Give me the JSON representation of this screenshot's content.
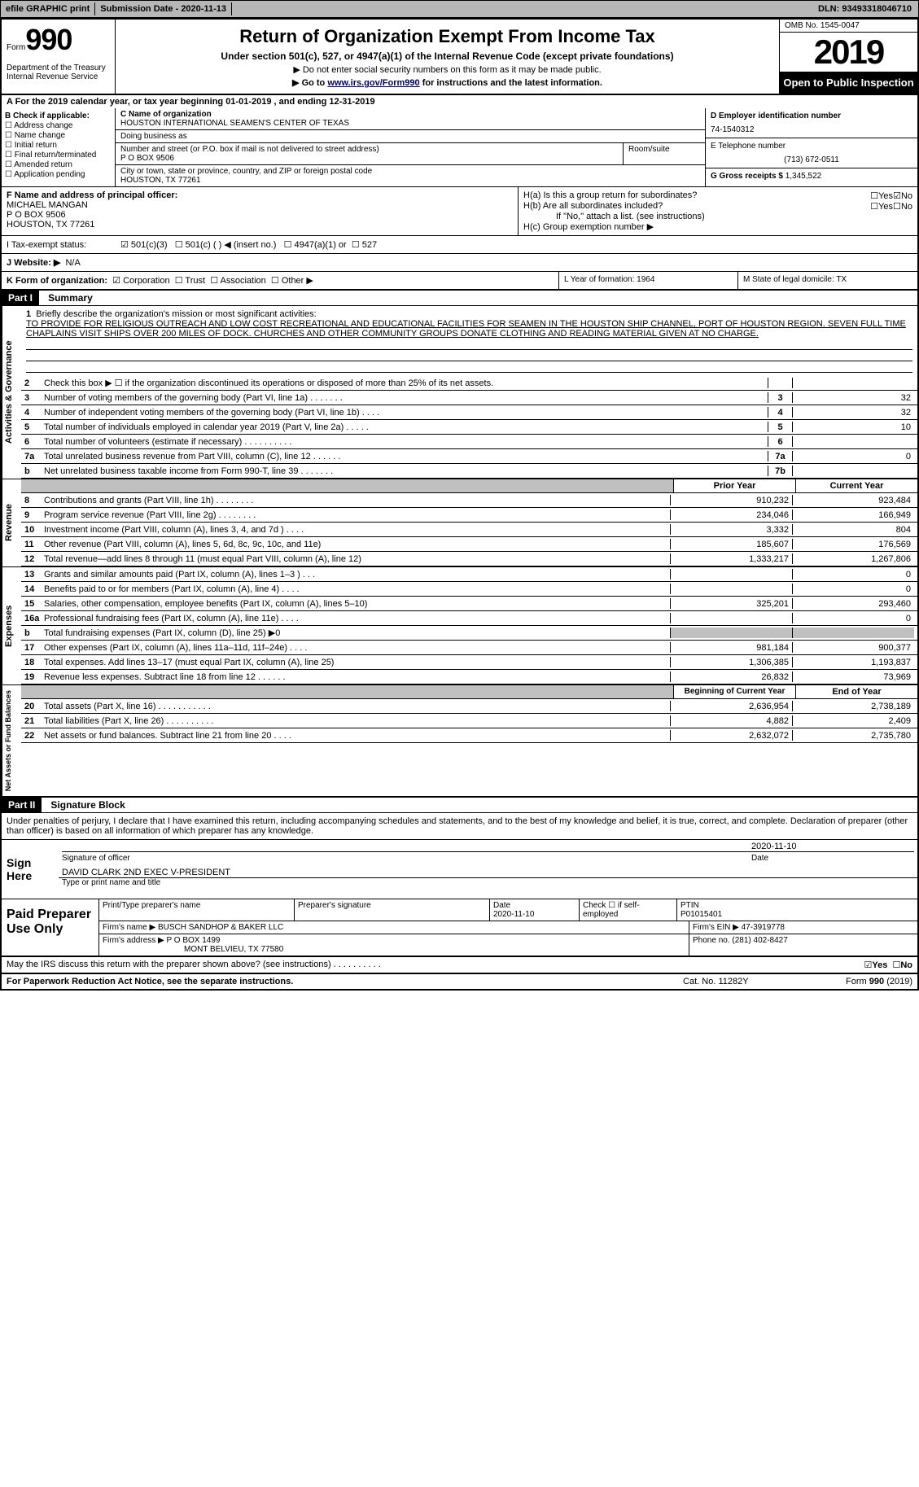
{
  "header": {
    "efile": "efile GRAPHIC print",
    "submission": "Submission Date - 2020-11-13",
    "dln": "DLN: 93493318046710"
  },
  "form": {
    "form_label": "Form",
    "form_no": "990",
    "dept": "Department of the Treasury\nInternal Revenue Service",
    "title": "Return of Organization Exempt From Income Tax",
    "subtitle": "Under section 501(c), 527, or 4947(a)(1) of the Internal Revenue Code (except private foundations)",
    "note1": "▶ Do not enter social security numbers on this form as it may be made public.",
    "note2_pre": "▶ Go to ",
    "note2_link": "www.irs.gov/Form990",
    "note2_post": " for instructions and the latest information.",
    "omb": "OMB No. 1545-0047",
    "year": "2019",
    "open": "Open to Public Inspection"
  },
  "period": "A For the 2019 calendar year, or tax year beginning 01-01-2019    , and ending 12-31-2019",
  "box_b": {
    "head": "B Check if applicable:",
    "items": [
      "Address change",
      "Name change",
      "Initial return",
      "Final return/terminated",
      "Amended return",
      "Application pending"
    ]
  },
  "box_c": {
    "label": "C Name of organization",
    "name": "HOUSTON INTERNATIONAL SEAMEN'S CENTER OF TEXAS",
    "dba_label": "Doing business as",
    "dba": "",
    "addr_label": "Number and street (or P.O. box if mail is not delivered to street address)",
    "addr": "P O BOX 9506",
    "room_label": "Room/suite",
    "city_label": "City or town, state or province, country, and ZIP or foreign postal code",
    "city": "HOUSTON, TX  77261"
  },
  "box_d": {
    "label": "D Employer identification number",
    "val": "74-1540312"
  },
  "box_e": {
    "label": "E Telephone number",
    "val": "(713) 672-0511"
  },
  "box_g": {
    "label": "G Gross receipts $",
    "val": "1,345,522"
  },
  "box_f": {
    "label": "F Name and address of principal officer:",
    "name": "MICHAEL MANGAN",
    "addr1": "P O BOX 9506",
    "addr2": "HOUSTON, TX  77261"
  },
  "box_h": {
    "ha": "H(a)  Is this a group return for subordinates?",
    "hb": "H(b)  Are all subordinates included?",
    "hb_note": "If \"No,\" attach a list. (see instructions)",
    "hc": "H(c)  Group exemption number ▶",
    "yes": "Yes",
    "no": "No"
  },
  "status": {
    "label": "I  Tax-exempt status:",
    "opts": [
      "501(c)(3)",
      "501(c) (  ) ◀ (insert no.)",
      "4947(a)(1) or",
      "527"
    ]
  },
  "website": {
    "label": "J  Website: ▶",
    "val": "N/A"
  },
  "box_k": {
    "label": "K Form of organization:",
    "opts": [
      "Corporation",
      "Trust",
      "Association",
      "Other ▶"
    ]
  },
  "box_l": "L Year of formation: 1964",
  "box_m": "M State of legal domicile: TX",
  "part1": {
    "header": "Part I",
    "title": "Summary"
  },
  "mission": {
    "num": "1",
    "label": "Briefly describe the organization's mission or most significant activities:",
    "text": "TO PROVIDE FOR RELIGIOUS OUTREACH AND LOW COST RECREATIONAL AND EDUCATIONAL FACILITIES FOR SEAMEN IN THE HOUSTON SHIP CHANNEL, PORT OF HOUSTON REGION. SEVEN FULL TIME CHAPLAINS VISIT SHIPS OVER 200 MILES OF DOCK. CHURCHES AND OTHER COMMUNITY GROUPS DONATE CLOTHING AND READING MATERIAL GIVEN AT NO CHARGE."
  },
  "lines_gov": [
    {
      "n": "2",
      "d": "Check this box ▶ ☐  if the organization discontinued its operations or disposed of more than 25% of its net assets.",
      "b": "",
      "v": ""
    },
    {
      "n": "3",
      "d": "Number of voting members of the governing body (Part VI, line 1a)   .    .    .    .    .    .    .",
      "b": "3",
      "v": "32"
    },
    {
      "n": "4",
      "d": "Number of independent voting members of the governing body (Part VI, line 1b)   .    .    .    .",
      "b": "4",
      "v": "32"
    },
    {
      "n": "5",
      "d": "Total number of individuals employed in calendar year 2019 (Part V, line 2a)   .    .    .    .    .",
      "b": "5",
      "v": "10"
    },
    {
      "n": "6",
      "d": "Total number of volunteers (estimate if necessary)   .    .    .    .    .    .    .    .    .    .",
      "b": "6",
      "v": ""
    },
    {
      "n": "7a",
      "d": "Total unrelated business revenue from Part VIII, column (C), line 12   .    .    .    .    .    .",
      "b": "7a",
      "v": "0"
    },
    {
      "n": "b",
      "d": "Net unrelated business taxable income from Form 990-T, line 39   .    .    .    .    .    .    .",
      "b": "7b",
      "v": ""
    }
  ],
  "year_hdr": {
    "prior": "Prior Year",
    "current": "Current Year"
  },
  "lines_rev": [
    {
      "n": "8",
      "d": "Contributions and grants (Part VIII, line 1h)   .    .    .    .    .    .    .    .",
      "p": "910,232",
      "c": "923,484"
    },
    {
      "n": "9",
      "d": "Program service revenue (Part VIII, line 2g)   .    .    .    .    .    .    .    .",
      "p": "234,046",
      "c": "166,949"
    },
    {
      "n": "10",
      "d": "Investment income (Part VIII, column (A), lines 3, 4, and 7d )   .    .    .    .",
      "p": "3,332",
      "c": "804"
    },
    {
      "n": "11",
      "d": "Other revenue (Part VIII, column (A), lines 5, 6d, 8c, 9c, 10c, and 11e)",
      "p": "185,607",
      "c": "176,569"
    },
    {
      "n": "12",
      "d": "Total revenue—add lines 8 through 11 (must equal Part VIII, column (A), line 12)",
      "p": "1,333,217",
      "c": "1,267,806"
    }
  ],
  "lines_exp": [
    {
      "n": "13",
      "d": "Grants and similar amounts paid (Part IX, column (A), lines 1–3 )  .    .    .",
      "p": "",
      "c": "0"
    },
    {
      "n": "14",
      "d": "Benefits paid to or for members (Part IX, column (A), line 4)   .    .    .    .",
      "p": "",
      "c": "0"
    },
    {
      "n": "15",
      "d": "Salaries, other compensation, employee benefits (Part IX, column (A), lines 5–10)",
      "p": "325,201",
      "c": "293,460"
    },
    {
      "n": "16a",
      "d": "Professional fundraising fees (Part IX, column (A), line 11e)   .    .    .    .",
      "p": "",
      "c": "0"
    },
    {
      "n": "b",
      "d": "Total fundraising expenses (Part IX, column (D), line 25) ▶0",
      "p": "",
      "c": "",
      "gray": true
    },
    {
      "n": "17",
      "d": "Other expenses (Part IX, column (A), lines 11a–11d, 11f–24e)   .    .    .    .",
      "p": "981,184",
      "c": "900,377"
    },
    {
      "n": "18",
      "d": "Total expenses. Add lines 13–17 (must equal Part IX, column (A), line 25)",
      "p": "1,306,385",
      "c": "1,193,837"
    },
    {
      "n": "19",
      "d": "Revenue less expenses. Subtract line 18 from line 12   .    .    .    .    .    .",
      "p": "26,832",
      "c": "73,969"
    }
  ],
  "net_hdr": {
    "begin": "Beginning of Current Year",
    "end": "End of Year"
  },
  "lines_net": [
    {
      "n": "20",
      "d": "Total assets (Part X, line 16)   .    .    .    .    .    .    .    .    .    .    .",
      "p": "2,636,954",
      "c": "2,738,189"
    },
    {
      "n": "21",
      "d": "Total liabilities (Part X, line 26)   .    .    .    .    .    .    .    .    .    .",
      "p": "4,882",
      "c": "2,409"
    },
    {
      "n": "22",
      "d": "Net assets or fund balances. Subtract line 21 from line 20   .    .    .    .",
      "p": "2,632,072",
      "c": "2,735,780"
    }
  ],
  "side_labels": {
    "gov": "Activities & Governance",
    "rev": "Revenue",
    "exp": "Expenses",
    "net": "Net Assets or Fund Balances"
  },
  "part2": {
    "header": "Part II",
    "title": "Signature Block"
  },
  "sig": {
    "decl": "Under penalties of perjury, I declare that I have examined this return, including accompanying schedules and statements, and to the best of my knowledge and belief, it is true, correct, and complete. Declaration of preparer (other than officer) is based on all information of which preparer has any knowledge.",
    "sign_here": "Sign Here",
    "sig_label": "Signature of officer",
    "date_label": "Date",
    "date": "2020-11-10",
    "name": "DAVID CLARK 2ND EXEC V-PRESIDENT",
    "name_label": "Type or print name and title"
  },
  "prep": {
    "title": "Paid Preparer Use Only",
    "h1": "Print/Type preparer's name",
    "h2": "Preparer's signature",
    "h3": "Date",
    "date": "2020-11-10",
    "h4": "Check ☐ if self-employed",
    "h5": "PTIN",
    "ptin": "P01015401",
    "firm_label": "Firm's name    ▶",
    "firm": "BUSCH SANDHOP & BAKER LLC",
    "ein_label": "Firm's EIN ▶",
    "ein": "47-3919778",
    "addr_label": "Firm's address ▶",
    "addr": "P O BOX 1499",
    "addr2": "MONT BELVIEU, TX  77580",
    "phone_label": "Phone no.",
    "phone": "(281) 402-8427"
  },
  "may_discuss": "May the IRS discuss this return with the preparer shown above? (see instructions)   .    .    .    .    .    .    .    .    .    .",
  "footer": {
    "left": "For Paperwork Reduction Act Notice, see the separate instructions.",
    "mid": "Cat. No. 11282Y",
    "right": "Form 990 (2019)"
  }
}
